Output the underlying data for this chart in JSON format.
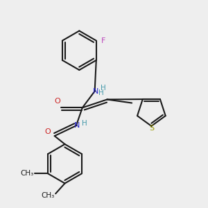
{
  "bg_color": "#eeeeee",
  "bond_color": "#1a1a1a",
  "N_color": "#2222cc",
  "O_color": "#cc2222",
  "F_color": "#bb44bb",
  "S_color": "#999900",
  "H_color": "#4499aa",
  "line_width": 1.5,
  "fig_w": 3.0,
  "fig_h": 3.0,
  "dpi": 100,
  "xlim": [
    0,
    10
  ],
  "ylim": [
    0,
    10
  ]
}
